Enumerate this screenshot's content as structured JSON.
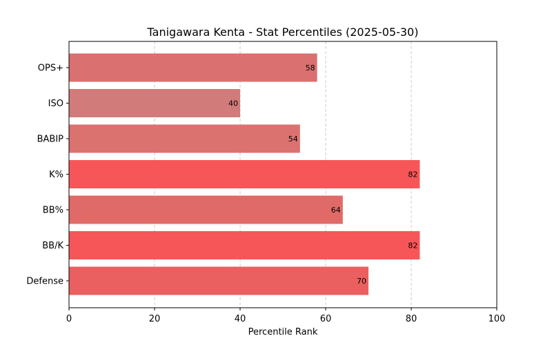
{
  "chart_data": {
    "type": "bar",
    "orientation": "horizontal",
    "title": "Tanigawara Kenta - Stat Percentiles (2025-05-30)",
    "xlabel": "Percentile Rank",
    "ylabel": "",
    "xlim": [
      0,
      100
    ],
    "xticks": [
      "0",
      "20",
      "40",
      "60",
      "80",
      "100"
    ],
    "grid": "vertical dashed",
    "categories": [
      "OPS+",
      "ISO",
      "BABIP",
      "K%",
      "BB%",
      "BB/K",
      "Defense"
    ],
    "values": [
      58,
      40,
      54,
      82,
      64,
      82,
      70
    ],
    "data_labels": [
      "58",
      "40",
      "54",
      "82",
      "64",
      "82",
      "70"
    ],
    "colors": [
      "#da706f",
      "#d17c7a",
      "#db7270",
      "#f65658",
      "#e06a68",
      "#f65658",
      "#ea5f5f"
    ]
  }
}
